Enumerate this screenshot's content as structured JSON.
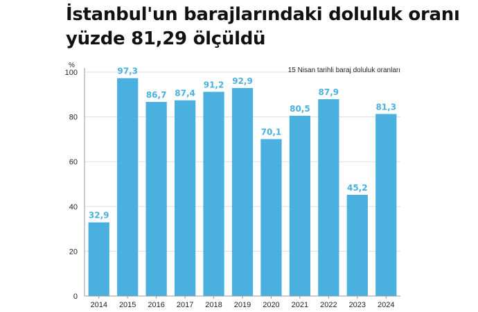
{
  "headline": {
    "line1": "İstanbul'un barajlarındaki doluluk oranı",
    "line2": "yüzde 81,29 ölçüldü"
  },
  "chart_data": {
    "type": "bar",
    "title": "",
    "annotation": "15 Nisan tarihli baraj doluluk oranları",
    "unit": "%",
    "xlabel": "",
    "ylabel": "",
    "categories": [
      "2014",
      "2015",
      "2016",
      "2017",
      "2018",
      "2019",
      "2020",
      "2021",
      "2022",
      "2023",
      "2024"
    ],
    "values": [
      32.9,
      97.3,
      86.7,
      87.4,
      91.2,
      92.9,
      70.1,
      80.5,
      87.9,
      45.2,
      81.3
    ],
    "value_labels": [
      "32,9",
      "97,3",
      "86,7",
      "87,4",
      "91,2",
      "92,9",
      "70,1",
      "80,5",
      "87,9",
      "45,2",
      "81,3"
    ],
    "ylim": [
      0,
      100
    ],
    "yticks": [
      "0",
      "20",
      "40",
      "60",
      "80",
      "100"
    ],
    "grid": true,
    "bar_color": "#4ab0e0",
    "label_color": "#4ab0e0"
  }
}
